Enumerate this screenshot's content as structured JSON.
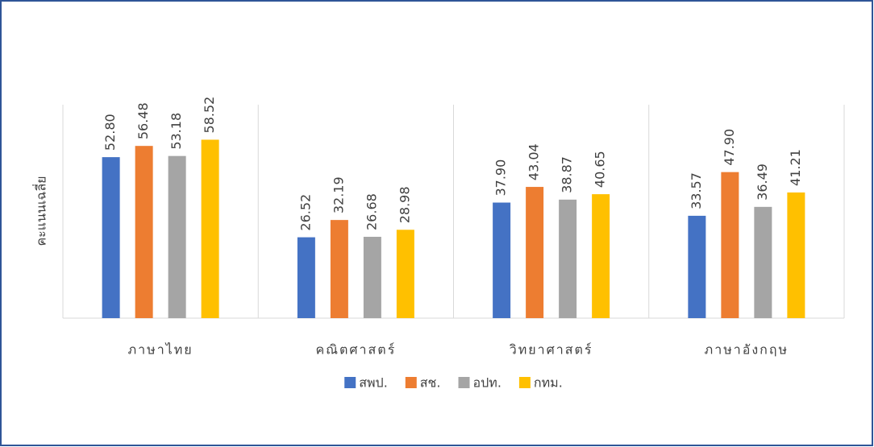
{
  "chart_data": {
    "type": "bar",
    "y_label": "คะแนนเฉลี่ย",
    "categories": [
      "ภาษาไทย",
      "คณิตศาสตร์",
      "วิทยาศาสตร์",
      "ภาษาอังกฤษ"
    ],
    "series": [
      {
        "name": "สพป.",
        "color": "#4472c4",
        "values": [
          52.8,
          26.52,
          37.9,
          33.57
        ],
        "value_labels": [
          "52.80",
          "26.52",
          "37.90",
          "33.57"
        ]
      },
      {
        "name": "สช.",
        "color": "#ed7d31",
        "values": [
          56.48,
          32.19,
          43.04,
          47.9
        ],
        "value_labels": [
          "56.48",
          "32.19",
          "43.04",
          "47.90"
        ]
      },
      {
        "name": "อปท.",
        "color": "#a5a5a5",
        "values": [
          53.18,
          26.68,
          38.87,
          36.49
        ],
        "value_labels": [
          "53.18",
          "26.68",
          "38.87",
          "36.49"
        ]
      },
      {
        "name": "กทม.",
        "color": "#ffc000",
        "values": [
          58.52,
          28.98,
          40.65,
          41.21
        ],
        "value_labels": [
          "58.52",
          "28.98",
          "40.65",
          "41.21"
        ]
      }
    ],
    "ylim": [
      0,
      70
    ],
    "legend": "bottom"
  }
}
